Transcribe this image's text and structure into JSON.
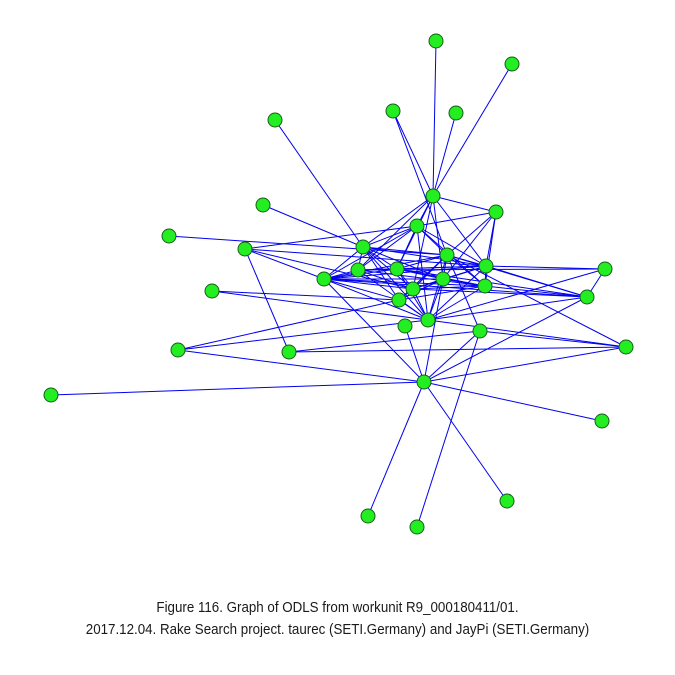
{
  "caption": {
    "line1": "Figure 116. Graph of ODLS from workunit R9_000180411/01.",
    "line2": "2017.12.04. Rake Search project. taurec (SETI.Germany) and JayPi (SETI.Germany)"
  },
  "style": {
    "node_fill": "#22ee22",
    "node_stroke": "#1a5c1a",
    "edge_color": "#0000ee"
  },
  "graph": {
    "nodes": [
      {
        "id": "n0"
      },
      {
        "id": "n1"
      },
      {
        "id": "n2"
      },
      {
        "id": "n3"
      },
      {
        "id": "n4"
      },
      {
        "id": "n5"
      },
      {
        "id": "n6"
      },
      {
        "id": "n7"
      },
      {
        "id": "n8"
      },
      {
        "id": "n9"
      },
      {
        "id": "n10"
      },
      {
        "id": "n11"
      },
      {
        "id": "n12"
      },
      {
        "id": "n13"
      },
      {
        "id": "n14"
      },
      {
        "id": "n15"
      },
      {
        "id": "n16"
      },
      {
        "id": "n17"
      },
      {
        "id": "n18"
      },
      {
        "id": "n19"
      },
      {
        "id": "n20"
      },
      {
        "id": "n21"
      },
      {
        "id": "n22"
      },
      {
        "id": "n23"
      },
      {
        "id": "n24"
      },
      {
        "id": "n25"
      },
      {
        "id": "n26"
      },
      {
        "id": "n27"
      },
      {
        "id": "n28"
      },
      {
        "id": "n29"
      },
      {
        "id": "n30"
      },
      {
        "id": "n31"
      },
      {
        "id": "n32"
      },
      {
        "id": "n33"
      },
      {
        "id": "n34"
      },
      {
        "id": "n35"
      }
    ],
    "edges": [
      [
        "n0",
        "n7"
      ],
      [
        "n1",
        "n7"
      ],
      [
        "n2",
        "n8"
      ],
      [
        "n3",
        "n7"
      ],
      [
        "n3",
        "n15"
      ],
      [
        "n4",
        "n7"
      ],
      [
        "n5",
        "n8"
      ],
      [
        "n7",
        "n8"
      ],
      [
        "n7",
        "n9"
      ],
      [
        "n7",
        "n13"
      ],
      [
        "n7",
        "n14"
      ],
      [
        "n7",
        "n16"
      ],
      [
        "n7",
        "n18"
      ],
      [
        "n7",
        "n19"
      ],
      [
        "n7",
        "n12"
      ],
      [
        "n8",
        "n9"
      ],
      [
        "n8",
        "n12"
      ],
      [
        "n8",
        "n11"
      ],
      [
        "n8",
        "n14"
      ],
      [
        "n8",
        "n15"
      ],
      [
        "n8",
        "n16"
      ],
      [
        "n8",
        "n18"
      ],
      [
        "n8",
        "n22"
      ],
      [
        "n8",
        "n23"
      ],
      [
        "n8",
        "n19"
      ],
      [
        "n9",
        "n10"
      ],
      [
        "n9",
        "n12"
      ],
      [
        "n9",
        "n13"
      ],
      [
        "n9",
        "n14"
      ],
      [
        "n9",
        "n15"
      ],
      [
        "n9",
        "n16"
      ],
      [
        "n9",
        "n20"
      ],
      [
        "n9",
        "n23"
      ],
      [
        "n6",
        "n15"
      ],
      [
        "n10",
        "n11"
      ],
      [
        "n10",
        "n16"
      ],
      [
        "n10",
        "n19"
      ],
      [
        "n10",
        "n27"
      ],
      [
        "n11",
        "n9"
      ],
      [
        "n11",
        "n12"
      ],
      [
        "n11",
        "n14"
      ],
      [
        "n11",
        "n15"
      ],
      [
        "n11",
        "n16"
      ],
      [
        "n11",
        "n18"
      ],
      [
        "n11",
        "n19"
      ],
      [
        "n11",
        "n20"
      ],
      [
        "n11",
        "n21"
      ],
      [
        "n11",
        "n22"
      ],
      [
        "n11",
        "n23"
      ],
      [
        "n11",
        "n24"
      ],
      [
        "n12",
        "n14"
      ],
      [
        "n12",
        "n16"
      ],
      [
        "n12",
        "n17"
      ],
      [
        "n12",
        "n19"
      ],
      [
        "n12",
        "n20"
      ],
      [
        "n12",
        "n23"
      ],
      [
        "n13",
        "n15"
      ],
      [
        "n13",
        "n16"
      ],
      [
        "n13",
        "n18"
      ],
      [
        "n13",
        "n20"
      ],
      [
        "n14",
        "n15"
      ],
      [
        "n14",
        "n16"
      ],
      [
        "n14",
        "n18"
      ],
      [
        "n14",
        "n19"
      ],
      [
        "n14",
        "n20"
      ],
      [
        "n14",
        "n21"
      ],
      [
        "n14",
        "n23"
      ],
      [
        "n15",
        "n16"
      ],
      [
        "n15",
        "n18"
      ],
      [
        "n15",
        "n19"
      ],
      [
        "n15",
        "n20"
      ],
      [
        "n15",
        "n21"
      ],
      [
        "n15",
        "n23"
      ],
      [
        "n15",
        "n22"
      ],
      [
        "n15",
        "n26"
      ],
      [
        "n15",
        "n25"
      ],
      [
        "n16",
        "n17"
      ],
      [
        "n16",
        "n18"
      ],
      [
        "n16",
        "n19"
      ],
      [
        "n16",
        "n20"
      ],
      [
        "n16",
        "n21"
      ],
      [
        "n16",
        "n23"
      ],
      [
        "n17",
        "n21"
      ],
      [
        "n17",
        "n23"
      ],
      [
        "n18",
        "n19"
      ],
      [
        "n18",
        "n20"
      ],
      [
        "n18",
        "n22"
      ],
      [
        "n18",
        "n23"
      ],
      [
        "n18",
        "n24"
      ],
      [
        "n19",
        "n20"
      ],
      [
        "n19",
        "n21"
      ],
      [
        "n19",
        "n22"
      ],
      [
        "n19",
        "n23"
      ],
      [
        "n20",
        "n21"
      ],
      [
        "n20",
        "n22"
      ],
      [
        "n20",
        "n23"
      ],
      [
        "n21",
        "n23"
      ],
      [
        "n21",
        "n24"
      ],
      [
        "n22",
        "n23"
      ],
      [
        "n22",
        "n28"
      ],
      [
        "n22",
        "n29"
      ],
      [
        "n22",
        "n18"
      ],
      [
        "n23",
        "n26"
      ],
      [
        "n24",
        "n25"
      ],
      [
        "n24",
        "n26"
      ],
      [
        "n25",
        "n26"
      ],
      [
        "n25",
        "n27"
      ],
      [
        "n26",
        "n27"
      ],
      [
        "n28",
        "n23"
      ],
      [
        "n29",
        "n23"
      ],
      [
        "n29",
        "n24"
      ],
      [
        "n30",
        "n24"
      ],
      [
        "n31",
        "n24"
      ],
      [
        "n32",
        "n24"
      ],
      [
        "n33",
        "n24"
      ],
      [
        "n34",
        "n24"
      ],
      [
        "n35",
        "n25"
      ]
    ]
  }
}
